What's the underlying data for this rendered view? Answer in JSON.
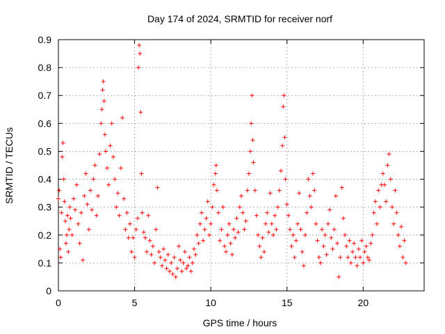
{
  "chart_data": {
    "type": "scatter",
    "title": "Day 174 of 2024, SRMTID for receiver norf",
    "xlabel": "GPS time / hours",
    "ylabel": "SRMTID / TECUs",
    "xlim": [
      0,
      24
    ],
    "ylim": [
      0,
      0.9
    ],
    "xticks": [
      0,
      5,
      10,
      15,
      20
    ],
    "yticks": [
      0,
      0.1,
      0.2,
      0.3,
      0.4,
      0.5,
      0.6,
      0.7,
      0.8,
      0.9
    ],
    "grid": true,
    "marker": "+",
    "color": "#ff0000",
    "series": [
      {
        "name": "norf",
        "points": [
          [
            0.0,
            0.33
          ],
          [
            0.05,
            0.36
          ],
          [
            0.1,
            0.15
          ],
          [
            0.15,
            0.12
          ],
          [
            0.2,
            0.28
          ],
          [
            0.25,
            0.48
          ],
          [
            0.3,
            0.53
          ],
          [
            0.35,
            0.4
          ],
          [
            0.4,
            0.32
          ],
          [
            0.45,
            0.25
          ],
          [
            0.5,
            0.17
          ],
          [
            0.55,
            0.2
          ],
          [
            0.6,
            0.27
          ],
          [
            0.65,
            0.14
          ],
          [
            0.7,
            0.22
          ],
          [
            0.75,
            0.3
          ],
          [
            0.8,
            0.26
          ],
          [
            0.9,
            0.2
          ],
          [
            1.0,
            0.33
          ],
          [
            1.1,
            0.29
          ],
          [
            1.2,
            0.38
          ],
          [
            1.3,
            0.24
          ],
          [
            1.4,
            0.17
          ],
          [
            1.5,
            0.28
          ],
          [
            1.6,
            0.11
          ],
          [
            1.7,
            0.34
          ],
          [
            1.8,
            0.42
          ],
          [
            1.9,
            0.31
          ],
          [
            2.0,
            0.22
          ],
          [
            2.1,
            0.36
          ],
          [
            2.2,
            0.29
          ],
          [
            2.3,
            0.4
          ],
          [
            2.4,
            0.45
          ],
          [
            2.5,
            0.27
          ],
          [
            2.6,
            0.34
          ],
          [
            2.7,
            0.49
          ],
          [
            2.8,
            0.6
          ],
          [
            2.85,
            0.65
          ],
          [
            2.9,
            0.72
          ],
          [
            2.95,
            0.75
          ],
          [
            3.0,
            0.68
          ],
          [
            3.05,
            0.56
          ],
          [
            3.1,
            0.5
          ],
          [
            3.2,
            0.44
          ],
          [
            3.3,
            0.38
          ],
          [
            3.4,
            0.52
          ],
          [
            3.5,
            0.6
          ],
          [
            3.6,
            0.48
          ],
          [
            3.7,
            0.4
          ],
          [
            3.8,
            0.3
          ],
          [
            3.9,
            0.35
          ],
          [
            4.0,
            0.27
          ],
          [
            4.1,
            0.44
          ],
          [
            4.2,
            0.62
          ],
          [
            4.3,
            0.33
          ],
          [
            4.4,
            0.22
          ],
          [
            4.5,
            0.28
          ],
          [
            4.6,
            0.19
          ],
          [
            4.7,
            0.24
          ],
          [
            4.8,
            0.14
          ],
          [
            4.9,
            0.19
          ],
          [
            5.0,
            0.12
          ],
          [
            5.1,
            0.22
          ],
          [
            5.2,
            0.26
          ],
          [
            5.25,
            0.8
          ],
          [
            5.3,
            0.88
          ],
          [
            5.35,
            0.85
          ],
          [
            5.4,
            0.64
          ],
          [
            5.45,
            0.42
          ],
          [
            5.5,
            0.28
          ],
          [
            5.6,
            0.21
          ],
          [
            5.7,
            0.19
          ],
          [
            5.8,
            0.14
          ],
          [
            5.9,
            0.27
          ],
          [
            6.0,
            0.18
          ],
          [
            6.1,
            0.13
          ],
          [
            6.2,
            0.16
          ],
          [
            6.3,
            0.1
          ],
          [
            6.4,
            0.22
          ],
          [
            6.5,
            0.37
          ],
          [
            6.6,
            0.14
          ],
          [
            6.7,
            0.12
          ],
          [
            6.8,
            0.09
          ],
          [
            6.9,
            0.15
          ],
          [
            7.0,
            0.11
          ],
          [
            7.1,
            0.08
          ],
          [
            7.2,
            0.13
          ],
          [
            7.3,
            0.07
          ],
          [
            7.4,
            0.1
          ],
          [
            7.5,
            0.06
          ],
          [
            7.6,
            0.12
          ],
          [
            7.7,
            0.05
          ],
          [
            7.8,
            0.08
          ],
          [
            7.9,
            0.16
          ],
          [
            8.0,
            0.11
          ],
          [
            8.1,
            0.07
          ],
          [
            8.2,
            0.1
          ],
          [
            8.3,
            0.14
          ],
          [
            8.4,
            0.08
          ],
          [
            8.5,
            0.09
          ],
          [
            8.6,
            0.12
          ],
          [
            8.7,
            0.07
          ],
          [
            8.8,
            0.1
          ],
          [
            8.9,
            0.15
          ],
          [
            9.0,
            0.13
          ],
          [
            9.1,
            0.2
          ],
          [
            9.2,
            0.17
          ],
          [
            9.3,
            0.24
          ],
          [
            9.4,
            0.28
          ],
          [
            9.5,
            0.18
          ],
          [
            9.6,
            0.22
          ],
          [
            9.7,
            0.26
          ],
          [
            9.8,
            0.32
          ],
          [
            9.9,
            0.2
          ],
          [
            10.0,
            0.24
          ],
          [
            10.1,
            0.3
          ],
          [
            10.2,
            0.38
          ],
          [
            10.3,
            0.42
          ],
          [
            10.35,
            0.45
          ],
          [
            10.4,
            0.36
          ],
          [
            10.5,
            0.28
          ],
          [
            10.6,
            0.18
          ],
          [
            10.7,
            0.22
          ],
          [
            10.8,
            0.3
          ],
          [
            10.9,
            0.16
          ],
          [
            11.0,
            0.14
          ],
          [
            11.1,
            0.2
          ],
          [
            11.2,
            0.24
          ],
          [
            11.3,
            0.17
          ],
          [
            11.4,
            0.13
          ],
          [
            11.5,
            0.22
          ],
          [
            11.6,
            0.19
          ],
          [
            11.7,
            0.26
          ],
          [
            11.8,
            0.21
          ],
          [
            11.9,
            0.3
          ],
          [
            12.0,
            0.34
          ],
          [
            12.1,
            0.28
          ],
          [
            12.2,
            0.22
          ],
          [
            12.3,
            0.25
          ],
          [
            12.4,
            0.36
          ],
          [
            12.5,
            0.42
          ],
          [
            12.6,
            0.5
          ],
          [
            12.65,
            0.6
          ],
          [
            12.7,
            0.7
          ],
          [
            12.75,
            0.54
          ],
          [
            12.8,
            0.46
          ],
          [
            12.9,
            0.36
          ],
          [
            13.0,
            0.27
          ],
          [
            13.1,
            0.2
          ],
          [
            13.2,
            0.16
          ],
          [
            13.3,
            0.12
          ],
          [
            13.4,
            0.19
          ],
          [
            13.5,
            0.14
          ],
          [
            13.6,
            0.24
          ],
          [
            13.7,
            0.28
          ],
          [
            13.8,
            0.21
          ],
          [
            13.9,
            0.35
          ],
          [
            14.0,
            0.24
          ],
          [
            14.1,
            0.2
          ],
          [
            14.2,
            0.27
          ],
          [
            14.3,
            0.22
          ],
          [
            14.4,
            0.3
          ],
          [
            14.5,
            0.36
          ],
          [
            14.6,
            0.43
          ],
          [
            14.7,
            0.52
          ],
          [
            14.75,
            0.66
          ],
          [
            14.8,
            0.7
          ],
          [
            14.85,
            0.55
          ],
          [
            14.9,
            0.4
          ],
          [
            15.0,
            0.31
          ],
          [
            15.1,
            0.27
          ],
          [
            15.2,
            0.22
          ],
          [
            15.3,
            0.16
          ],
          [
            15.4,
            0.2
          ],
          [
            15.5,
            0.12
          ],
          [
            15.6,
            0.18
          ],
          [
            15.7,
            0.24
          ],
          [
            15.8,
            0.35
          ],
          [
            15.9,
            0.22
          ],
          [
            16.0,
            0.14
          ],
          [
            16.1,
            0.09
          ],
          [
            16.2,
            0.2
          ],
          [
            16.3,
            0.28
          ],
          [
            16.4,
            0.4
          ],
          [
            16.5,
            0.34
          ],
          [
            16.6,
            0.3
          ],
          [
            16.7,
            0.42
          ],
          [
            16.8,
            0.36
          ],
          [
            16.9,
            0.24
          ],
          [
            17.0,
            0.18
          ],
          [
            17.1,
            0.12
          ],
          [
            17.2,
            0.1
          ],
          [
            17.3,
            0.22
          ],
          [
            17.4,
            0.16
          ],
          [
            17.5,
            0.2
          ],
          [
            17.6,
            0.13
          ],
          [
            17.7,
            0.24
          ],
          [
            17.8,
            0.29
          ],
          [
            17.9,
            0.19
          ],
          [
            18.0,
            0.15
          ],
          [
            18.1,
            0.22
          ],
          [
            18.2,
            0.34
          ],
          [
            18.3,
            0.17
          ],
          [
            18.4,
            0.05
          ],
          [
            18.5,
            0.12
          ],
          [
            18.6,
            0.37
          ],
          [
            18.7,
            0.26
          ],
          [
            18.8,
            0.2
          ],
          [
            18.9,
            0.16
          ],
          [
            19.0,
            0.12
          ],
          [
            19.1,
            0.18
          ],
          [
            19.2,
            0.1
          ],
          [
            19.3,
            0.14
          ],
          [
            19.4,
            0.17
          ],
          [
            19.5,
            0.12
          ],
          [
            19.6,
            0.09
          ],
          [
            19.7,
            0.15
          ],
          [
            19.8,
            0.12
          ],
          [
            19.9,
            0.18
          ],
          [
            20.0,
            0.1
          ],
          [
            20.1,
            0.14
          ],
          [
            20.2,
            0.16
          ],
          [
            20.3,
            0.12
          ],
          [
            20.4,
            0.11
          ],
          [
            20.5,
            0.17
          ],
          [
            20.6,
            0.2
          ],
          [
            20.7,
            0.28
          ],
          [
            20.8,
            0.32
          ],
          [
            20.9,
            0.24
          ],
          [
            21.0,
            0.36
          ],
          [
            21.1,
            0.3
          ],
          [
            21.2,
            0.38
          ],
          [
            21.3,
            0.42
          ],
          [
            21.4,
            0.38
          ],
          [
            21.5,
            0.32
          ],
          [
            21.6,
            0.45
          ],
          [
            21.7,
            0.49
          ],
          [
            21.8,
            0.4
          ],
          [
            21.9,
            0.3
          ],
          [
            22.0,
            0.24
          ],
          [
            22.1,
            0.36
          ],
          [
            22.2,
            0.28
          ],
          [
            22.3,
            0.2
          ],
          [
            22.4,
            0.16
          ],
          [
            22.5,
            0.23
          ],
          [
            22.6,
            0.12
          ],
          [
            22.7,
            0.18
          ],
          [
            22.8,
            0.1
          ]
        ]
      }
    ]
  }
}
